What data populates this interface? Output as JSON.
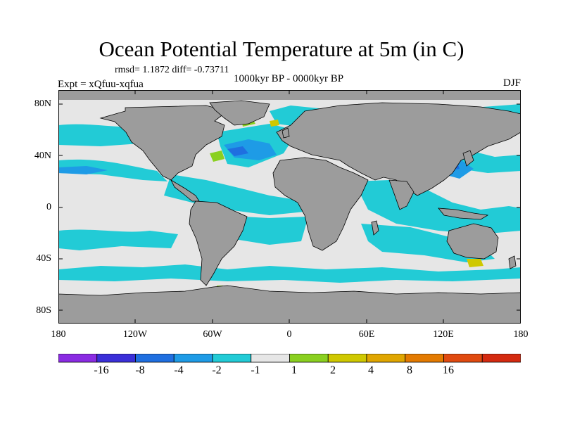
{
  "title": "Ocean Potential Temperature at 5m (in C)",
  "stats": "rmsd= 1.1872 diff= -0.73711",
  "period": "1000kyr BP - 0000kyr BP",
  "experiment": "Expt = xQfuu-xqfua",
  "season": "DJF",
  "y_ticks": [
    "80N",
    "40N",
    "0",
    "40S",
    "80S"
  ],
  "x_ticks": [
    "180",
    "120W",
    "60W",
    "0",
    "60E",
    "120E",
    "180"
  ],
  "colorbar": {
    "colors": [
      "#8a2be2",
      "#3a2fd8",
      "#1f6fe0",
      "#1e9be6",
      "#22cbd6",
      "#e6e6e6",
      "#8ad020",
      "#cfc800",
      "#e0a600",
      "#e37a00",
      "#e04a10",
      "#d42a10"
    ],
    "labels": [
      "-16",
      "-8",
      "-4",
      "-2",
      "-1",
      "1",
      "2",
      "4",
      "8",
      "16"
    ]
  },
  "colors": {
    "land": "#9c9c9c",
    "ocean_neutral": "#e6e6e6",
    "cool_light": "#22cbd6",
    "cool": "#1e9be6",
    "cool_deep": "#1f6fe0",
    "warm": "#8ad020",
    "warm_yellow": "#cfc800"
  }
}
